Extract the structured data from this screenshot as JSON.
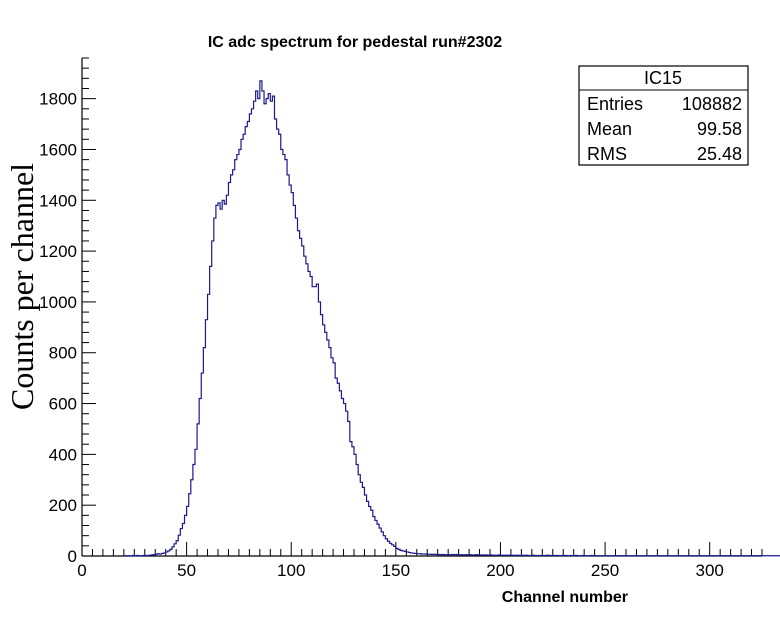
{
  "chart_data": {
    "type": "histogram",
    "title": "IC adc spectrum for pedestal run#2302",
    "xlabel": "Channel number",
    "ylabel": "Counts per channel",
    "xlim": [
      0,
      325
    ],
    "ylim": [
      0,
      1960
    ],
    "x_ticks": [
      0,
      50,
      100,
      150,
      200,
      250,
      300
    ],
    "y_ticks": [
      0,
      200,
      400,
      600,
      800,
      1000,
      1200,
      1400,
      1600,
      1800
    ],
    "line_color": "#1a1a8c",
    "stats_box": {
      "name": "IC15",
      "rows": [
        {
          "label": "Entries",
          "value": "108882"
        },
        {
          "label": "Mean",
          "value": "99.58"
        },
        {
          "label": "RMS",
          "value": "25.48"
        }
      ]
    },
    "series": [
      {
        "bin_width": 1,
        "start": 20,
        "values": [
          1,
          0,
          1,
          0,
          2,
          1,
          2,
          1,
          0,
          2,
          2,
          2,
          3,
          4,
          5,
          7,
          9,
          8,
          10,
          12,
          16,
          20,
          26,
          36,
          48,
          60,
          82,
          108,
          128,
          160,
          195,
          245,
          300,
          360,
          420,
          520,
          620,
          720,
          820,
          930,
          1030,
          1140,
          1240,
          1330,
          1380,
          1390,
          1365,
          1400,
          1385,
          1420,
          1470,
          1500,
          1520,
          1560,
          1580,
          1600,
          1640,
          1660,
          1690,
          1710,
          1740,
          1760,
          1790,
          1830,
          1800,
          1870,
          1830,
          1780,
          1800,
          1820,
          1790,
          1810,
          1720,
          1680,
          1660,
          1600,
          1580,
          1560,
          1500,
          1460,
          1430,
          1380,
          1330,
          1280,
          1250,
          1220,
          1180,
          1150,
          1120,
          1100,
          1060,
          1060,
          1070,
          1000,
          950,
          910,
          880,
          850,
          820,
          780,
          760,
          700,
          680,
          650,
          620,
          600,
          570,
          530,
          450,
          430,
          400,
          360,
          320,
          290,
          270,
          240,
          215,
          195,
          180,
          155,
          140,
          125,
          110,
          95,
          80,
          68,
          58,
          50,
          44,
          38,
          30,
          26,
          22,
          20,
          18,
          16,
          14,
          12,
          11,
          10,
          9,
          9,
          8,
          8,
          8,
          7,
          7,
          6,
          7,
          6,
          6,
          5,
          6,
          5,
          5,
          5,
          5,
          6,
          5,
          6,
          4,
          5,
          4,
          5,
          5,
          5,
          4,
          4,
          5,
          4,
          4,
          4,
          4,
          4,
          3,
          4,
          3,
          3,
          3,
          4,
          3,
          3,
          3,
          3,
          3,
          3,
          2,
          3,
          3,
          2,
          3,
          2,
          3,
          2,
          2,
          3,
          2,
          2,
          2,
          2,
          2,
          2,
          3,
          2,
          2,
          2,
          2,
          2,
          1,
          2,
          2,
          2,
          1,
          2,
          1,
          2,
          2,
          1,
          1,
          2,
          1,
          1,
          1,
          2,
          1,
          1,
          1,
          1,
          1,
          1,
          1,
          1,
          1,
          1,
          1,
          1,
          1,
          1,
          1,
          1,
          1,
          1,
          1,
          1,
          1,
          1,
          1,
          1,
          1,
          1,
          1,
          1,
          1,
          1,
          1,
          1,
          1,
          1,
          1,
          1,
          1,
          1,
          1,
          1,
          1,
          1,
          1,
          1,
          1,
          1,
          1,
          1,
          1,
          1,
          1,
          1,
          1,
          1,
          1,
          1,
          1,
          1,
          1,
          1,
          1,
          1,
          1,
          1,
          1,
          1,
          1,
          1,
          1,
          1,
          1,
          1,
          1,
          1,
          1,
          1,
          1,
          1,
          1,
          1,
          1,
          1,
          1,
          1,
          1,
          1,
          1,
          1,
          1,
          1,
          1,
          1,
          1
        ]
      }
    ]
  }
}
